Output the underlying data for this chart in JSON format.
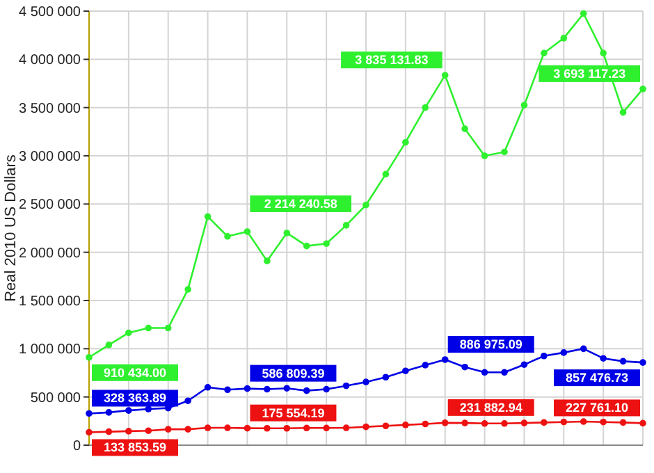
{
  "chart_data": {
    "type": "line",
    "ylabel": "Real 2010 US Dollars",
    "categories": [
      null,
      null,
      null,
      null,
      null,
      null,
      null,
      null,
      null,
      null,
      null,
      null,
      null,
      null,
      null,
      null,
      null,
      null,
      null,
      null,
      null,
      null,
      null,
      null,
      null,
      null,
      null,
      null,
      null
    ],
    "series": [
      {
        "color": "#2ef02e",
        "values": [
          910434,
          1040000,
          1165000,
          1215000,
          1215000,
          1615000,
          2370000,
          2165000,
          2214240.58,
          1910000,
          2200000,
          2065000,
          2090000,
          2280000,
          2490000,
          2810000,
          3140000,
          3500000,
          3835131.83,
          3280000,
          3000000,
          3040000,
          3525000,
          4065000,
          4220000,
          4475000,
          4065000,
          3450000,
          3693117.23
        ],
        "value_labels": [
          "910 434.00",
          null,
          null,
          null,
          null,
          null,
          null,
          null,
          "2 214 240.58",
          null,
          null,
          null,
          null,
          null,
          null,
          null,
          null,
          null,
          "3 835 131.83",
          null,
          null,
          null,
          null,
          null,
          null,
          null,
          null,
          null,
          "3 693 117.23"
        ]
      },
      {
        "color": "#0000e6",
        "values": [
          328363.89,
          340000,
          360000,
          375000,
          385000,
          460000,
          600000,
          575000,
          586809.39,
          580000,
          590000,
          565000,
          580000,
          615000,
          655000,
          705000,
          770000,
          830000,
          886975.09,
          810000,
          755000,
          755000,
          835000,
          925000,
          960000,
          1000000,
          900000,
          870000,
          857476.73
        ],
        "value_labels": [
          "328 363.89",
          null,
          null,
          null,
          null,
          null,
          null,
          null,
          "586 809.39",
          null,
          null,
          null,
          null,
          null,
          null,
          null,
          null,
          null,
          "886 975.09",
          null,
          null,
          null,
          null,
          null,
          null,
          null,
          null,
          null,
          "857 476.73"
        ]
      },
      {
        "color": "#ee1111",
        "values": [
          133853.59,
          140000,
          145000,
          150000,
          165000,
          165000,
          180000,
          180000,
          175554.19,
          175000,
          175000,
          178000,
          178000,
          180000,
          190000,
          200000,
          210000,
          220000,
          231882.94,
          230000,
          225000,
          225000,
          230000,
          235000,
          240000,
          245000,
          240000,
          235000,
          227761.1
        ],
        "value_labels": [
          "133 853.59",
          null,
          null,
          null,
          null,
          null,
          null,
          null,
          "175 554.19",
          null,
          null,
          null,
          null,
          null,
          null,
          null,
          null,
          null,
          "231 882.94",
          null,
          null,
          null,
          null,
          null,
          null,
          null,
          null,
          null,
          "227 761.10"
        ]
      }
    ],
    "ylim": [
      0,
      4500000
    ],
    "yticks": [
      {
        "value": 0,
        "label": "0"
      },
      {
        "value": 500000,
        "label": "500 000"
      },
      {
        "value": 1000000,
        "label": "1 000 000"
      },
      {
        "value": 1500000,
        "label": "1 500 000"
      },
      {
        "value": 2000000,
        "label": "2 000 000"
      },
      {
        "value": 2500000,
        "label": "2 500 000"
      },
      {
        "value": 3000000,
        "label": "3 000 000"
      },
      {
        "value": 3500000,
        "label": "3 500 000"
      },
      {
        "value": 4000000,
        "label": "4 000 000"
      },
      {
        "value": 4500000,
        "label": "4 500 000"
      }
    ],
    "grid": true,
    "marker": "circle",
    "line_style": "solid",
    "tick_labels": "y"
  }
}
